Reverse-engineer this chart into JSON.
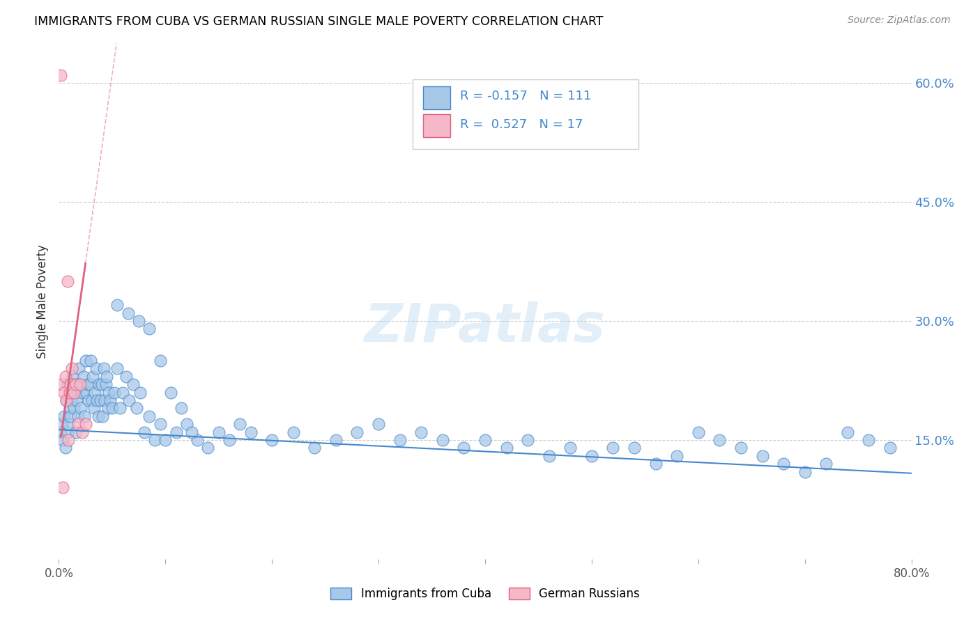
{
  "title": "IMMIGRANTS FROM CUBA VS GERMAN RUSSIAN SINGLE MALE POVERTY CORRELATION CHART",
  "source": "Source: ZipAtlas.com",
  "ylabel": "Single Male Poverty",
  "right_ytick_labels": [
    "60.0%",
    "45.0%",
    "30.0%",
    "15.0%"
  ],
  "right_ytick_values": [
    0.6,
    0.45,
    0.3,
    0.15
  ],
  "xlim": [
    0.0,
    0.8
  ],
  "ylim": [
    0.0,
    0.65
  ],
  "cuba_R": -0.157,
  "cuba_N": 111,
  "german_R": 0.527,
  "german_N": 17,
  "cuba_color": "#a8c8e8",
  "german_color": "#f4b8c8",
  "cuba_line_color": "#4488cc",
  "german_line_color": "#e06080",
  "watermark": "ZIPatlas",
  "cuba_trend_x0": 0.0,
  "cuba_trend_y0": 0.163,
  "cuba_trend_x1": 0.8,
  "cuba_trend_y1": 0.108,
  "german_trend_slope": 9.5,
  "german_trend_intercept": 0.135,
  "cuba_x": [
    0.002,
    0.003,
    0.004,
    0.005,
    0.006,
    0.007,
    0.008,
    0.008,
    0.009,
    0.01,
    0.01,
    0.011,
    0.012,
    0.013,
    0.014,
    0.015,
    0.016,
    0.016,
    0.017,
    0.018,
    0.019,
    0.02,
    0.021,
    0.022,
    0.023,
    0.024,
    0.025,
    0.026,
    0.027,
    0.028,
    0.029,
    0.03,
    0.031,
    0.032,
    0.033,
    0.034,
    0.035,
    0.036,
    0.037,
    0.038,
    0.039,
    0.04,
    0.041,
    0.042,
    0.043,
    0.044,
    0.045,
    0.046,
    0.047,
    0.048,
    0.05,
    0.052,
    0.055,
    0.057,
    0.06,
    0.063,
    0.066,
    0.07,
    0.073,
    0.076,
    0.08,
    0.085,
    0.09,
    0.095,
    0.1,
    0.11,
    0.12,
    0.13,
    0.14,
    0.15,
    0.16,
    0.17,
    0.18,
    0.2,
    0.22,
    0.24,
    0.26,
    0.28,
    0.3,
    0.32,
    0.34,
    0.36,
    0.38,
    0.4,
    0.42,
    0.44,
    0.46,
    0.48,
    0.5,
    0.52,
    0.54,
    0.56,
    0.58,
    0.6,
    0.62,
    0.64,
    0.66,
    0.68,
    0.7,
    0.72,
    0.74,
    0.76,
    0.78,
    0.055,
    0.065,
    0.075,
    0.085,
    0.095,
    0.105,
    0.115,
    0.125
  ],
  "cuba_y": [
    0.16,
    0.17,
    0.15,
    0.18,
    0.14,
    0.2,
    0.16,
    0.22,
    0.17,
    0.19,
    0.21,
    0.18,
    0.2,
    0.23,
    0.19,
    0.22,
    0.21,
    0.16,
    0.2,
    0.18,
    0.24,
    0.22,
    0.19,
    0.21,
    0.23,
    0.18,
    0.25,
    0.21,
    0.22,
    0.2,
    0.22,
    0.25,
    0.2,
    0.23,
    0.19,
    0.21,
    0.24,
    0.2,
    0.18,
    0.22,
    0.2,
    0.22,
    0.18,
    0.24,
    0.2,
    0.22,
    0.23,
    0.19,
    0.21,
    0.2,
    0.19,
    0.21,
    0.24,
    0.19,
    0.21,
    0.23,
    0.2,
    0.22,
    0.19,
    0.21,
    0.16,
    0.18,
    0.15,
    0.17,
    0.15,
    0.16,
    0.17,
    0.15,
    0.14,
    0.16,
    0.15,
    0.17,
    0.16,
    0.15,
    0.16,
    0.14,
    0.15,
    0.16,
    0.17,
    0.15,
    0.16,
    0.15,
    0.14,
    0.15,
    0.14,
    0.15,
    0.13,
    0.14,
    0.13,
    0.14,
    0.14,
    0.12,
    0.13,
    0.16,
    0.15,
    0.14,
    0.13,
    0.12,
    0.11,
    0.12,
    0.16,
    0.15,
    0.14,
    0.32,
    0.31,
    0.3,
    0.29,
    0.25,
    0.21,
    0.19,
    0.16
  ],
  "german_x": [
    0.002,
    0.003,
    0.004,
    0.005,
    0.006,
    0.007,
    0.008,
    0.009,
    0.01,
    0.011,
    0.012,
    0.014,
    0.016,
    0.018,
    0.02,
    0.022,
    0.025
  ],
  "german_y": [
    0.61,
    0.22,
    0.09,
    0.21,
    0.23,
    0.2,
    0.35,
    0.15,
    0.21,
    0.22,
    0.24,
    0.21,
    0.22,
    0.17,
    0.22,
    0.16,
    0.17
  ]
}
